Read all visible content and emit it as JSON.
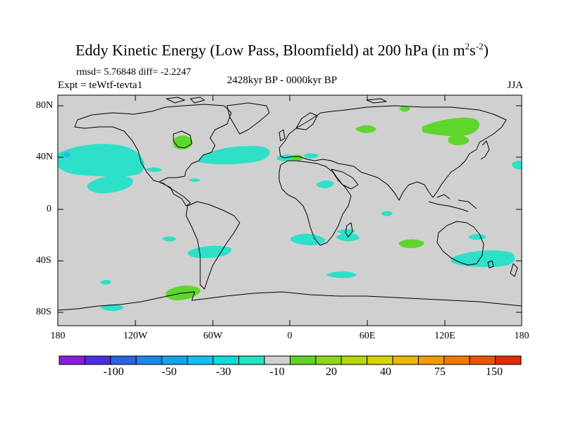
{
  "title_main": "Eddy Kinetic Energy (Low Pass, Bloomfield) at 200 hPa (in m",
  "title_sup1": "2",
  "title_mid": "s",
  "title_sup2": "-2",
  "title_end": ")",
  "stats": "rmsd= 5.76848 diff= -2.2247",
  "expt": "Expt = teWtf-tevta1",
  "period": "2428kyr BP - 0000kyr BP",
  "season": "JJA",
  "lat_labels": [
    "80N",
    "40N",
    "0",
    "40S",
    "80S"
  ],
  "lon_labels": [
    "180",
    "120W",
    "60W",
    "0",
    "60E",
    "120E",
    "180"
  ],
  "colorbar": {
    "colors": [
      "#8a1ee0",
      "#4a2fe0",
      "#2a62e0",
      "#1e86e6",
      "#16a2ea",
      "#12c0ee",
      "#10dcdc",
      "#22e6c2",
      "#d0d0d0",
      "#5cd42a",
      "#8ed61c",
      "#b6d610",
      "#d8d208",
      "#e8b808",
      "#f09c06",
      "#ee7a06",
      "#e85406",
      "#e02a06"
    ],
    "labels": [
      "-100",
      "-50",
      "-30",
      "-10",
      "20",
      "40",
      "75",
      "150"
    ]
  },
  "anomaly_colors": {
    "negative": "#2ee0c8",
    "negative_strong": "#26bfe0",
    "positive": "#5ed62c"
  }
}
